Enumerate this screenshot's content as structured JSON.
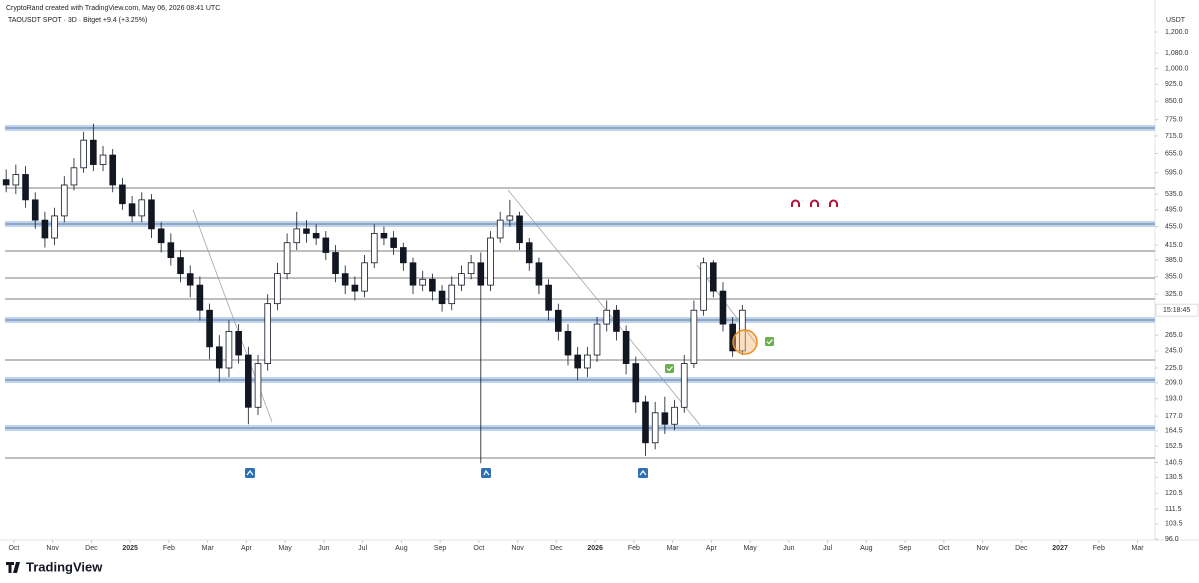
{
  "header": {
    "credit": "CryptoRand created with TradingView.com, May 06, 2026 08:41 UTC",
    "symbol": "TAOUSDT SPOT · 3D · Bitget +9.4 (+3.25%)",
    "logo": "TradingView"
  },
  "chart_data": {
    "type": "candlestick",
    "y_axis_label": "USDT",
    "log_scale": true,
    "price_label": "15:18:45",
    "up_color": "#ffffff",
    "down_color": "#131722",
    "border_color": "#131722",
    "ylim": [
      95.5,
      1306
    ],
    "xlim": [
      -0.23,
      29.45
    ],
    "yticks": [
      {
        "value": 1200,
        "label": "1,200.0"
      },
      {
        "value": 1080,
        "label": "1,080.0"
      },
      {
        "value": 1000,
        "label": "1,000.0"
      },
      {
        "value": 925,
        "label": "925.0"
      },
      {
        "value": 850,
        "label": "850.0"
      },
      {
        "value": 775,
        "label": "775.0"
      },
      {
        "value": 715,
        "label": "715.0"
      },
      {
        "value": 655,
        "label": "655.0"
      },
      {
        "value": 595,
        "label": "595.0"
      },
      {
        "value": 535,
        "label": "535.0"
      },
      {
        "value": 495,
        "label": "495.0"
      },
      {
        "value": 455,
        "label": "455.0"
      },
      {
        "value": 415,
        "label": "415.0"
      },
      {
        "value": 385,
        "label": "385.0"
      },
      {
        "value": 355,
        "label": "355.0"
      },
      {
        "value": 325,
        "label": "325.0"
      },
      {
        "value": 265,
        "label": "265.0"
      },
      {
        "value": 245,
        "label": "245.0"
      },
      {
        "value": 225,
        "label": "225.0"
      },
      {
        "value": 209,
        "label": "209.0"
      },
      {
        "value": 193,
        "label": "193.0"
      },
      {
        "value": 177,
        "label": "177.0"
      },
      164.5,
      152.5,
      140.5,
      130.5,
      120.5,
      111.5,
      103.5,
      {
        "value": 96,
        "label": "96.0"
      }
    ],
    "xticks": [
      {
        "value": 0,
        "label": "Oct"
      },
      {
        "value": 1,
        "label": "Nov"
      },
      {
        "value": 2,
        "label": "Dec"
      },
      {
        "value": 3,
        "label": "2025"
      },
      {
        "value": 4,
        "label": "Feb"
      },
      {
        "value": 5,
        "label": "Mar"
      },
      {
        "value": 6,
        "label": "Apr"
      },
      {
        "value": 7,
        "label": "May"
      },
      {
        "value": 8,
        "label": "Jun"
      },
      {
        "value": 9,
        "label": "Jul"
      },
      {
        "value": 10,
        "label": "Aug"
      },
      {
        "value": 11,
        "label": "Sep"
      },
      {
        "value": 12,
        "label": "Oct"
      },
      {
        "value": 13,
        "label": "Nov"
      },
      {
        "value": 14,
        "label": "Dec"
      },
      {
        "value": 15,
        "label": "2026"
      },
      {
        "value": 16,
        "label": "Feb"
      },
      {
        "value": 17,
        "label": "Mar"
      },
      {
        "value": 18,
        "label": "Apr"
      },
      {
        "value": 19,
        "label": "May"
      },
      {
        "value": 20,
        "label": "Jun"
      },
      {
        "value": 21,
        "label": "Jul"
      },
      {
        "value": 22,
        "label": "Aug"
      },
      {
        "value": 23,
        "label": "Sep"
      },
      {
        "value": 24,
        "label": "Oct"
      },
      {
        "value": 25,
        "label": "Nov"
      },
      {
        "value": 26,
        "label": "Dec"
      },
      {
        "value": 27,
        "label": "2027"
      },
      {
        "value": 28,
        "label": "Feb"
      },
      {
        "value": 29,
        "label": "Mar"
      }
    ],
    "x": [
      -0.2,
      0.05,
      0.3,
      0.55,
      0.8,
      1.05,
      1.3,
      1.55,
      1.8,
      2.05,
      2.3,
      2.55,
      2.8,
      3.05,
      3.3,
      3.55,
      3.8,
      4.05,
      4.3,
      4.55,
      4.8,
      5.05,
      5.3,
      5.55,
      5.8,
      6.05,
      6.3,
      6.55,
      6.8,
      7.05,
      7.3,
      7.55,
      7.8,
      8.05,
      8.3,
      8.55,
      8.8,
      9.05,
      9.3,
      9.55,
      9.8,
      10.05,
      10.3,
      10.55,
      10.8,
      11.05,
      11.3,
      11.55,
      11.8,
      12.05,
      12.3,
      12.55,
      12.8,
      13.05,
      13.3,
      13.55,
      13.8,
      14.05,
      14.3,
      14.55,
      14.8,
      15.05,
      15.3,
      15.55,
      15.8,
      16.05,
      16.3,
      16.55,
      16.8,
      17.05,
      17.3,
      17.55,
      17.8,
      18.05,
      18.3,
      18.55,
      18.8
    ],
    "open": [
      575,
      560,
      590,
      520,
      470,
      430,
      480,
      560,
      610,
      700,
      620,
      650,
      560,
      510,
      480,
      520,
      450,
      420,
      390,
      360,
      340,
      300,
      250,
      225,
      270,
      240,
      185,
      230,
      310,
      360,
      420,
      450,
      440,
      430,
      400,
      360,
      340,
      330,
      380,
      440,
      430,
      410,
      380,
      340,
      350,
      330,
      310,
      340,
      360,
      380,
      340,
      430,
      470,
      480,
      420,
      380,
      340,
      300,
      270,
      240,
      225,
      240,
      280,
      300,
      270,
      230,
      190,
      155,
      180,
      170,
      185,
      230,
      300,
      380,
      330,
      280,
      245
    ],
    "high": [
      605,
      620,
      615,
      540,
      490,
      500,
      585,
      640,
      730,
      760,
      680,
      670,
      580,
      530,
      540,
      535,
      465,
      440,
      405,
      375,
      355,
      310,
      265,
      285,
      280,
      250,
      240,
      325,
      380,
      440,
      490,
      470,
      460,
      445,
      415,
      375,
      355,
      395,
      460,
      455,
      445,
      420,
      390,
      365,
      360,
      340,
      355,
      375,
      395,
      400,
      445,
      490,
      520,
      490,
      430,
      390,
      350,
      310,
      280,
      250,
      250,
      290,
      315,
      308,
      278,
      238,
      196,
      190,
      195,
      192,
      240,
      315,
      390,
      385,
      345,
      290,
      308
    ],
    "low": [
      540,
      535,
      500,
      450,
      410,
      415,
      465,
      545,
      595,
      600,
      600,
      540,
      495,
      465,
      465,
      430,
      400,
      375,
      345,
      320,
      285,
      235,
      210,
      215,
      230,
      170,
      178,
      222,
      300,
      350,
      405,
      420,
      415,
      385,
      345,
      325,
      315,
      320,
      370,
      415,
      395,
      365,
      325,
      330,
      315,
      298,
      300,
      330,
      350,
      140,
      330,
      420,
      455,
      405,
      365,
      325,
      285,
      258,
      228,
      212,
      215,
      232,
      270,
      258,
      218,
      180,
      145,
      150,
      162,
      165,
      180,
      225,
      292,
      320,
      270,
      238,
      240
    ],
    "close": [
      560,
      590,
      520,
      470,
      430,
      480,
      560,
      610,
      700,
      620,
      650,
      560,
      510,
      480,
      520,
      450,
      420,
      390,
      360,
      340,
      300,
      250,
      225,
      270,
      240,
      185,
      230,
      310,
      360,
      420,
      450,
      440,
      430,
      400,
      360,
      340,
      330,
      380,
      440,
      430,
      410,
      380,
      340,
      350,
      330,
      310,
      340,
      360,
      380,
      340,
      430,
      470,
      480,
      420,
      380,
      340,
      300,
      270,
      240,
      225,
      240,
      280,
      300,
      270,
      230,
      190,
      155,
      180,
      170,
      185,
      230,
      300,
      380,
      330,
      280,
      245,
      300
    ]
  }
}
